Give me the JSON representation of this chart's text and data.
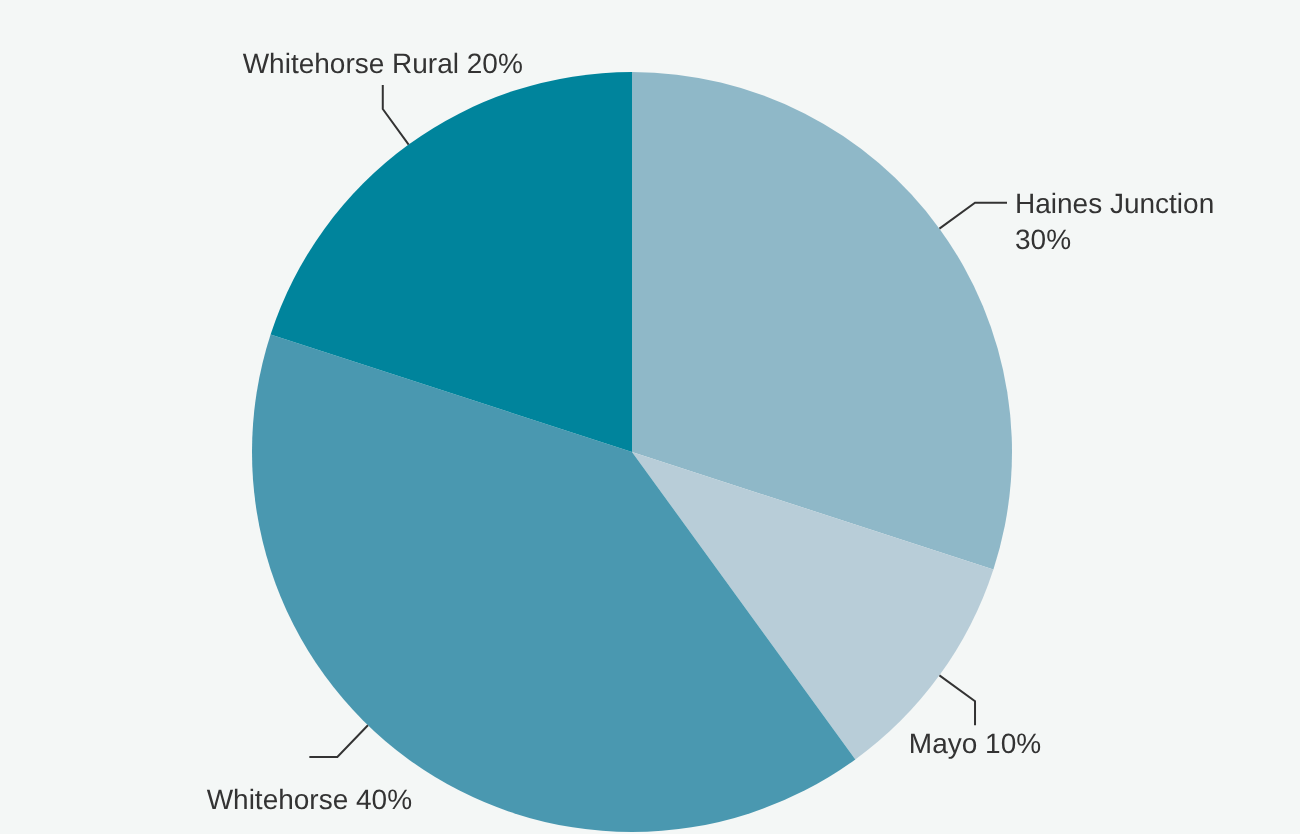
{
  "chart_data": {
    "type": "pie",
    "categories": [
      "Haines Junction",
      "Mayo",
      "Whitehorse",
      "Whitehorse Rural"
    ],
    "values": [
      30,
      10,
      40,
      20
    ],
    "value_labels": [
      "30%",
      "10%",
      "40%",
      "20%"
    ],
    "colors": [
      "#8fb8c8",
      "#b8cdd8",
      "#4a98b0",
      "#00849c"
    ]
  }
}
